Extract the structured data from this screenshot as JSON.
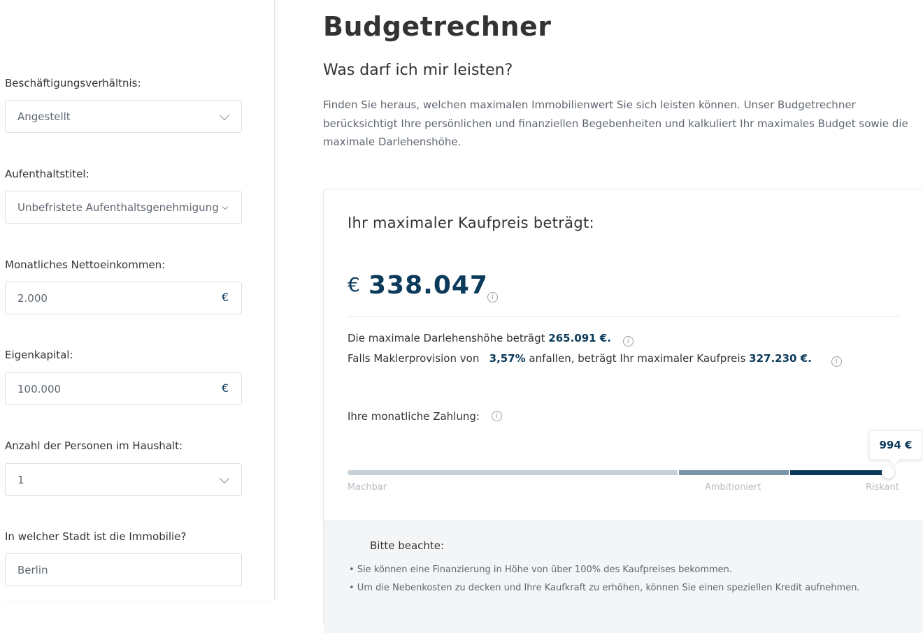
{
  "sidebar": {
    "employment": {
      "label": "Beschäftigungsverhältnis:",
      "value": "Angestellt"
    },
    "residence": {
      "label": "Aufenthaltstitel:",
      "value": "Unbefristete Aufenthaltsgenehmigung"
    },
    "income": {
      "label": "Monatliches Nettoeinkommen:",
      "value": "2.000",
      "currency": "€"
    },
    "equity": {
      "label": "Eigenkapital:",
      "value": "100.000",
      "currency": "€"
    },
    "persons": {
      "label": "Anzahl der Personen im Haushalt:",
      "value": "1"
    },
    "city": {
      "label": "In welcher Stadt ist die Immobilie?",
      "value": "Berlin"
    }
  },
  "main": {
    "title": "Budgetrechner",
    "subtitle": "Was darf ich mir leisten?",
    "intro": "Finden Sie heraus, welchen maximalen Immobilienwert Sie sich leisten können. Unser Budgetrechner berücksichtigt Ihre persönlichen und finanziellen Begebenheiten und kalkuliert Ihr maximales Budget sowie die maximale Darlehenshöhe."
  },
  "result": {
    "heading": "Ihr maximaler Kaufpreis beträgt:",
    "currency_symbol": "€",
    "max_price": "338.047",
    "loan_prefix": "Die maximale Darlehenshöhe beträgt",
    "loan_value": "265.091 €.",
    "commission_prefix": "Falls Maklerprovision von",
    "commission_rate": "3,57%",
    "commission_middle": "anfallen, beträgt Ihr maximaler Kaufpreis",
    "commission_price": "327.230  €.",
    "monthly_label": "Ihre monatliche Zahlung:",
    "monthly_value": "994 €",
    "monthly_level": 0.99,
    "scale": {
      "low": "Machbar",
      "mid": "Ambitioniert",
      "high": "Riskant"
    }
  },
  "note": {
    "title": "Bitte beachte:",
    "items": [
      "• Sie können eine Finanzierung in Höhe von über 100% des Kaufpreises bekommen.",
      "• Um die Nebenkosten zu decken und Ihre Kaufkraft zu erhöhen, können Sie einen speziellen Kredit aufnehmen."
    ]
  },
  "colors": {
    "accent": "#0b3a5a",
    "mid": "#7b95a6",
    "light": "#c6d0d7"
  }
}
